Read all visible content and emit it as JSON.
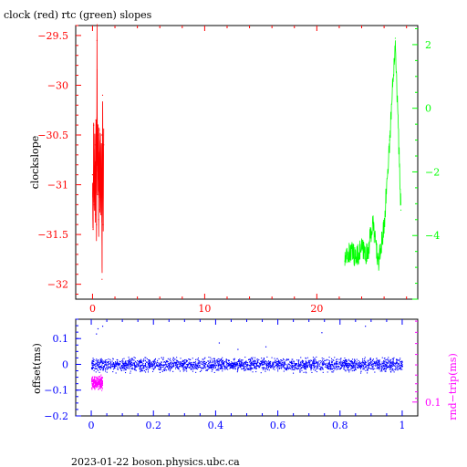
{
  "title": "clock (red) rtc (green) slopes",
  "footer": "2023-01-22  boson.physics.ubc.ca",
  "colors": {
    "clock": "#ff0000",
    "rtc": "#00ff00",
    "offset": "#0000ff",
    "rndtrip": "#ff00ff",
    "frame": "#000000"
  },
  "chart_data": [
    {
      "type": "line",
      "title": "clock (red) rtc (green) slopes",
      "xlabel": "",
      "ylabel": "clockslope",
      "xlim": [
        -1.5,
        29
      ],
      "ylim": [
        -32.15,
        -29.4
      ],
      "y2lim": [
        -6.0,
        2.6
      ],
      "grid": false,
      "x_ticks": [
        0,
        10,
        20
      ],
      "x_tick_labels": [
        "0",
        "10",
        "20"
      ],
      "y_ticks": [
        -29.5,
        -30,
        -30.5,
        -31,
        -31.5,
        -32
      ],
      "y_tick_labels": [
        "−29.5",
        "−30",
        "−30.5",
        "−31",
        "−31.5",
        "−32"
      ],
      "y2_ticks": [
        2,
        0,
        -2,
        -4
      ],
      "y2_tick_labels": [
        "2",
        "0",
        "−2",
        "−4"
      ],
      "series": [
        {
          "name": "clock",
          "axis": "left",
          "x": [
            0.0,
            0.05,
            0.1,
            0.15,
            0.2,
            0.25,
            0.3,
            0.35,
            0.4,
            0.45,
            0.5,
            0.55,
            0.6,
            0.65,
            0.7,
            0.75,
            0.8,
            0.85,
            0.9,
            0.95,
            1.0
          ],
          "y": [
            -30.9,
            -31.45,
            -30.4,
            -31.2,
            -30.6,
            -31.3,
            -30.35,
            -31.4,
            -29.55,
            -31.1,
            -30.5,
            -31.35,
            -30.45,
            -31.25,
            -30.55,
            -31.3,
            -30.5,
            -31.95,
            -30.1,
            -31.4,
            -30.6
          ]
        },
        {
          "name": "rtc",
          "axis": "right",
          "x": [
            22.5,
            23.0,
            23.5,
            24.0,
            24.5,
            25.0,
            25.5,
            26.0,
            26.5,
            27.0,
            27.5
          ],
          "y": [
            -4.8,
            -4.5,
            -4.7,
            -4.4,
            -4.6,
            -3.6,
            -4.9,
            -3.7,
            -1.0,
            2.2,
            -3.2
          ]
        }
      ]
    },
    {
      "type": "scatter",
      "xlabel": "",
      "ylabel": "offset(ms)",
      "y2label": "rnd−trip(ms)",
      "xlim": [
        -0.05,
        1.05
      ],
      "ylim": [
        -0.2,
        0.175
      ],
      "grid": false,
      "x_ticks": [
        0,
        0.2,
        0.4,
        0.6,
        0.8,
        1
      ],
      "x_tick_labels": [
        "0",
        "0.2",
        "0.4",
        "0.6",
        "0.8",
        "1"
      ],
      "y_ticks": [
        0.1,
        0,
        -0.1,
        -0.2
      ],
      "y_tick_labels": [
        "0.1",
        "0",
        "−0.1",
        "−0.2"
      ],
      "y2_ticks": [
        0.1
      ],
      "y2_tick_labels": [
        "0.1"
      ],
      "series": [
        {
          "name": "offset",
          "axis": "left",
          "x_range": [
            0,
            1
          ],
          "center": 0.0,
          "spread": 0.035
        },
        {
          "name": "rnd-trip",
          "axis": "left",
          "x_range": [
            0,
            0.035
          ],
          "center": -0.07,
          "spread": 0.035
        }
      ]
    }
  ]
}
